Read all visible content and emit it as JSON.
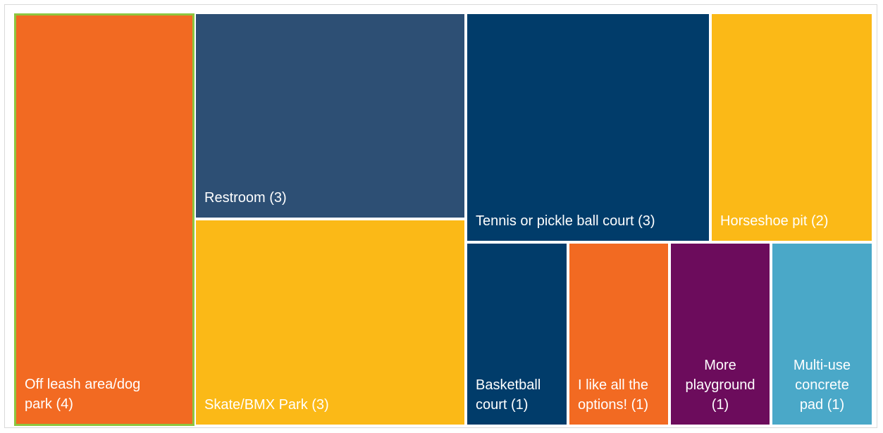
{
  "chart_data": {
    "type": "treemap",
    "items": [
      {
        "label": "Off leash area/dog\npark (4)",
        "name": "Off leash area/dog park",
        "value": 4,
        "color": "#f26a22",
        "text_color": "#ffffff"
      },
      {
        "label": "Restroom (3)",
        "name": "Restroom",
        "value": 3,
        "color": "#2d4f74",
        "text_color": "#ffffff"
      },
      {
        "label": "Skate/BMX Park (3)",
        "name": "Skate/BMX Park",
        "value": 3,
        "color": "#fbb917",
        "text_color": "#ffffff"
      },
      {
        "label": "Tennis or pickle ball court (3)",
        "name": "Tennis or pickle ball court",
        "value": 3,
        "color": "#013c6a",
        "text_color": "#ffffff"
      },
      {
        "label": "Horseshoe pit (2)",
        "name": "Horseshoe pit",
        "value": 2,
        "color": "#fbb917",
        "text_color": "#ffffff"
      },
      {
        "label": "Basketball\ncourt (1)",
        "name": "Basketball court",
        "value": 1,
        "color": "#013c6a",
        "text_color": "#ffffff"
      },
      {
        "label": "I like all the\noptions! (1)",
        "name": "I like all the options!",
        "value": 1,
        "color": "#f26a22",
        "text_color": "#ffffff"
      },
      {
        "label": "More\nplayground\n(1)",
        "name": "More playground",
        "value": 1,
        "color": "#6c0c5c",
        "text_color": "#ffffff"
      },
      {
        "label": "Multi-use\nconcrete\npad (1)",
        "name": "Multi-use concrete pad",
        "value": 1,
        "color": "#4aa8c8",
        "text_color": "#ffffff"
      }
    ]
  }
}
